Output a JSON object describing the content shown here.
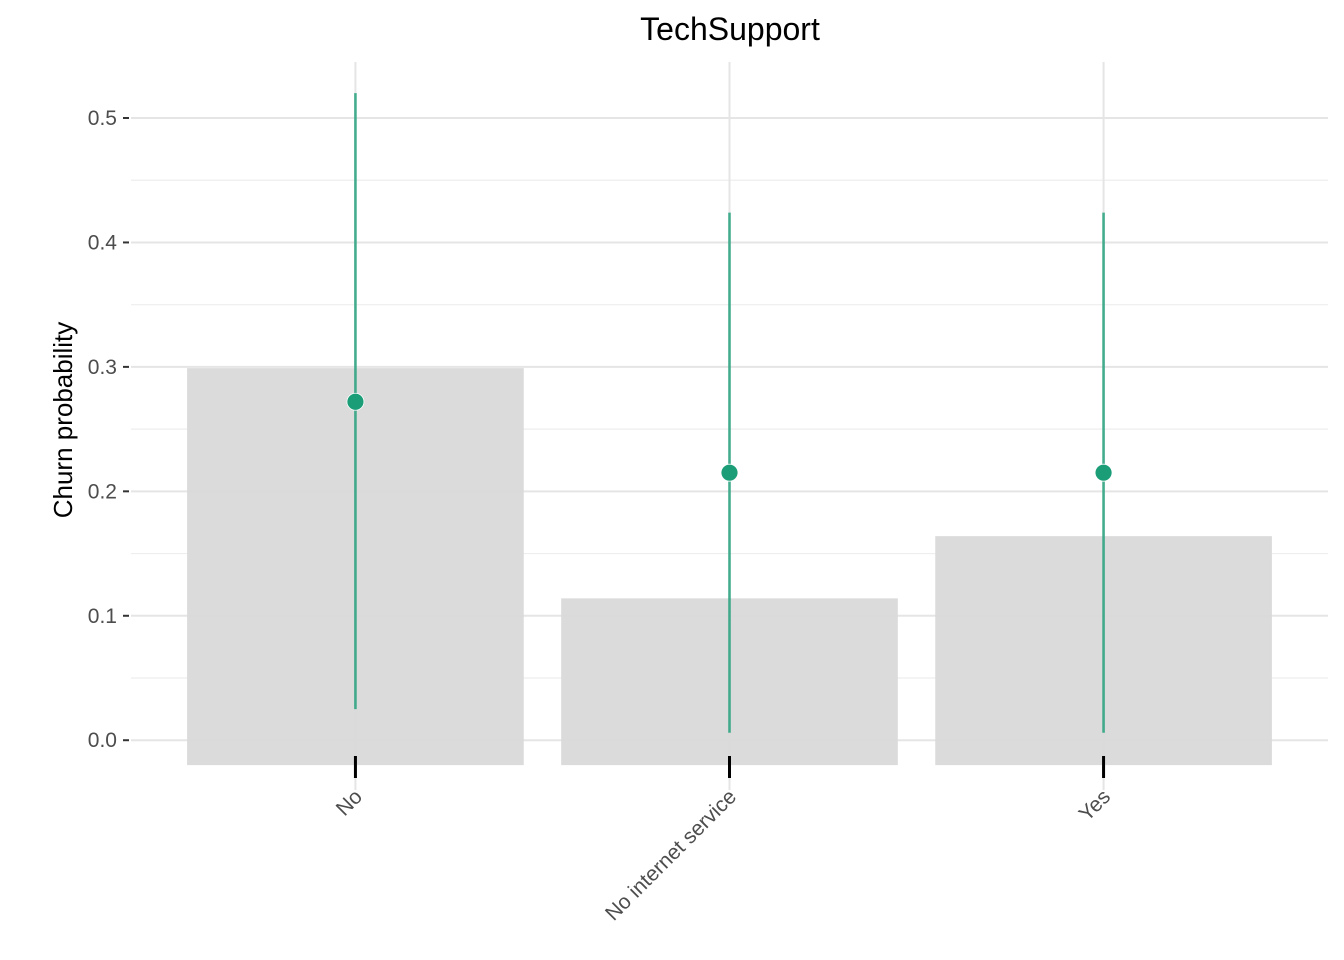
{
  "chart_data": {
    "type": "bar",
    "title": "TechSupport",
    "xlabel": "",
    "ylabel": "Churn probability",
    "categories": [
      "No",
      "No internet service",
      "Yes"
    ],
    "ylim": [
      -0.04,
      0.545
    ],
    "yticks": [
      0.0,
      0.1,
      0.2,
      0.3,
      0.4,
      0.5
    ],
    "ytick_labels": [
      "0.0",
      "0.1",
      "0.2",
      "0.3",
      "0.4",
      "0.5"
    ],
    "grid": true,
    "bars": {
      "name": "",
      "values": [
        0.299,
        0.114,
        0.164
      ],
      "baseline": -0.02,
      "color": "#d9d9d9"
    },
    "points": {
      "name": "",
      "values": [
        0.272,
        0.215,
        0.215
      ],
      "lower": [
        0.025,
        0.006,
        0.006
      ],
      "upper": [
        0.52,
        0.424,
        0.424
      ],
      "color": "#1b9e77"
    }
  }
}
